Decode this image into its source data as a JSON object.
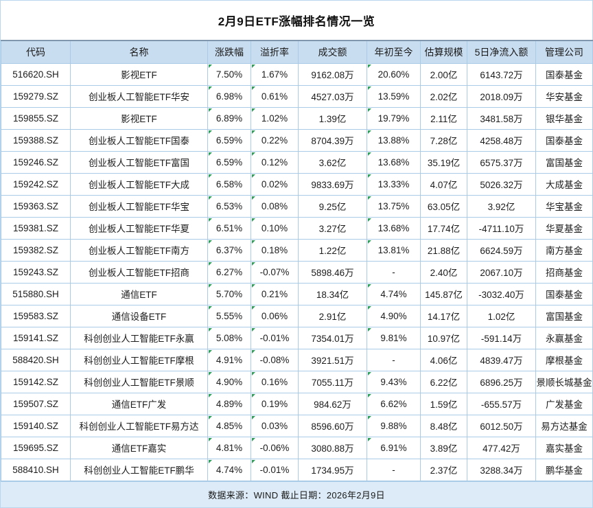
{
  "title": "2月9日ETF涨幅排名情况一览",
  "footer": {
    "source_note": "数据来源：WIND 截止日期：2026年2月9日"
  },
  "colors": {
    "header_bg": "#c9ddf0",
    "footer_bg": "#dcebf7",
    "border": "#a9cbe8",
    "top_rule": "#7f96ad",
    "marker_green": "#2e9e5b"
  },
  "chart_data": {
    "type": "table",
    "title": "2月9日ETF涨幅排名情况一览",
    "source": "数据来源：WIND 截止日期：2026年2月9日",
    "columns": [
      "代码",
      "名称",
      "涨跌幅",
      "溢折率",
      "成交额",
      "年初至今",
      "估算规模",
      "5日净流入额",
      "管理公司"
    ],
    "marker_columns": [
      2,
      3,
      5
    ],
    "rows": [
      [
        "516620.SH",
        "影视ETF",
        "7.50%",
        "1.67%",
        "9162.08万",
        "20.60%",
        "2.00亿",
        "6143.72万",
        "国泰基金"
      ],
      [
        "159279.SZ",
        "创业板人工智能ETF华安",
        "6.98%",
        "0.61%",
        "4527.03万",
        "13.59%",
        "2.02亿",
        "2018.09万",
        "华安基金"
      ],
      [
        "159855.SZ",
        "影视ETF",
        "6.89%",
        "1.02%",
        "1.39亿",
        "19.79%",
        "2.11亿",
        "3481.58万",
        "银华基金"
      ],
      [
        "159388.SZ",
        "创业板人工智能ETF国泰",
        "6.59%",
        "0.22%",
        "8704.39万",
        "13.88%",
        "7.28亿",
        "4258.48万",
        "国泰基金"
      ],
      [
        "159246.SZ",
        "创业板人工智能ETF富国",
        "6.59%",
        "0.12%",
        "3.62亿",
        "13.68%",
        "35.19亿",
        "6575.37万",
        "富国基金"
      ],
      [
        "159242.SZ",
        "创业板人工智能ETF大成",
        "6.58%",
        "0.02%",
        "9833.69万",
        "13.33%",
        "4.07亿",
        "5026.32万",
        "大成基金"
      ],
      [
        "159363.SZ",
        "创业板人工智能ETF华宝",
        "6.53%",
        "0.08%",
        "9.25亿",
        "13.75%",
        "63.05亿",
        "3.92亿",
        "华宝基金"
      ],
      [
        "159381.SZ",
        "创业板人工智能ETF华夏",
        "6.51%",
        "0.10%",
        "3.27亿",
        "13.68%",
        "17.74亿",
        "-4711.10万",
        "华夏基金"
      ],
      [
        "159382.SZ",
        "创业板人工智能ETF南方",
        "6.37%",
        "0.18%",
        "1.22亿",
        "13.81%",
        "21.88亿",
        "6624.59万",
        "南方基金"
      ],
      [
        "159243.SZ",
        "创业板人工智能ETF招商",
        "6.27%",
        "-0.07%",
        "5898.46万",
        "-",
        "2.40亿",
        "2067.10万",
        "招商基金"
      ],
      [
        "515880.SH",
        "通信ETF",
        "5.70%",
        "0.21%",
        "18.34亿",
        "4.74%",
        "145.87亿",
        "-3032.40万",
        "国泰基金"
      ],
      [
        "159583.SZ",
        "通信设备ETF",
        "5.55%",
        "0.06%",
        "2.91亿",
        "4.90%",
        "14.17亿",
        "1.02亿",
        "富国基金"
      ],
      [
        "159141.SZ",
        "科创创业人工智能ETF永赢",
        "5.08%",
        "-0.01%",
        "7354.01万",
        "9.81%",
        "10.97亿",
        "-591.14万",
        "永赢基金"
      ],
      [
        "588420.SH",
        "科创创业人工智能ETF摩根",
        "4.91%",
        "-0.08%",
        "3921.51万",
        "-",
        "4.06亿",
        "4839.47万",
        "摩根基金"
      ],
      [
        "159142.SZ",
        "科创创业人工智能ETF景顺",
        "4.90%",
        "0.16%",
        "7055.11万",
        "9.43%",
        "6.22亿",
        "6896.25万",
        "景顺长城基金"
      ],
      [
        "159507.SZ",
        "通信ETF广发",
        "4.89%",
        "0.19%",
        "984.62万",
        "6.62%",
        "1.59亿",
        "-655.57万",
        "广发基金"
      ],
      [
        "159140.SZ",
        "科创创业人工智能ETF易方达",
        "4.85%",
        "0.03%",
        "8596.60万",
        "9.88%",
        "8.48亿",
        "6012.50万",
        "易方达基金"
      ],
      [
        "159695.SZ",
        "通信ETF嘉实",
        "4.81%",
        "-0.06%",
        "3080.88万",
        "6.91%",
        "3.89亿",
        "477.42万",
        "嘉实基金"
      ],
      [
        "588410.SH",
        "科创创业人工智能ETF鹏华",
        "4.74%",
        "-0.01%",
        "1734.95万",
        "-",
        "2.37亿",
        "3288.34万",
        "鹏华基金"
      ]
    ]
  }
}
